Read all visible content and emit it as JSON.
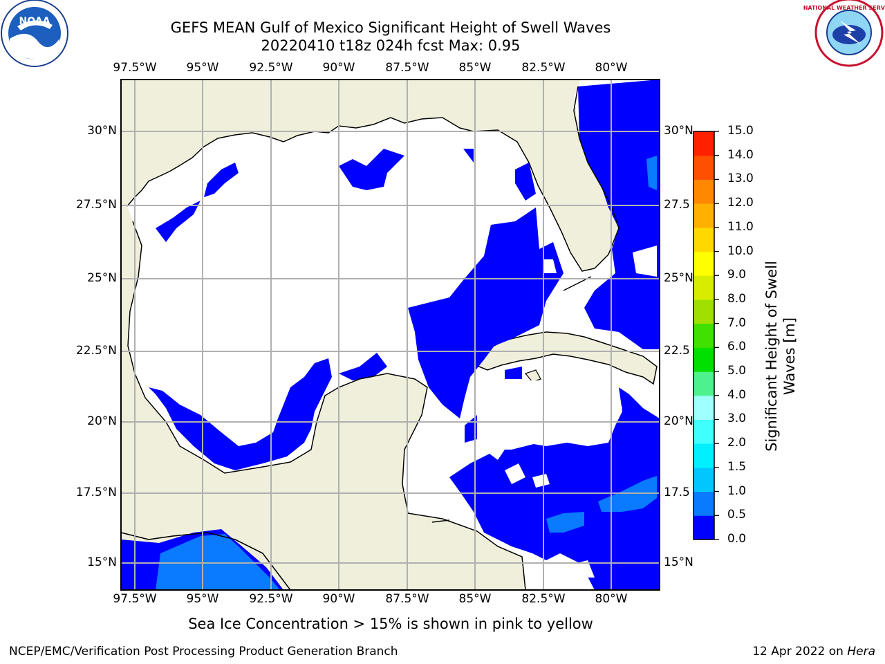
{
  "title_line1": "GEFS MEAN Gulf of Mexico Significant Height of Swell Waves",
  "title_line2": "20220410 t18z 024h fcst   Max: 0.95",
  "lon_ticks": [
    "97.5°W",
    "95°W",
    "92.5°W",
    "90°W",
    "87.5°W",
    "85°W",
    "82.5°W",
    "80°W"
  ],
  "lat_ticks_left": [
    "30°N",
    "27.5°N",
    "25°N",
    "22.5°N",
    "20°N",
    "17.5°N",
    "15°N"
  ],
  "lat_ticks_right": [
    "30°N",
    "27.5",
    "25°N",
    "22.5",
    "20°N",
    "17.5",
    "15°N"
  ],
  "colorbar": {
    "label": "Significant Height of Swell Waves [m]",
    "label_line1": "Significant Height of Swell",
    "label_line2": "Waves [m]",
    "ticks": [
      "0.0",
      "0.5",
      "1.0",
      "1.5",
      "2.0",
      "3.0",
      "4.0",
      "5.0",
      "6.0",
      "7.0",
      "8.0",
      "9.0",
      "10.0",
      "11.0",
      "12.0",
      "13.0",
      "14.0",
      "15.0"
    ],
    "colors": [
      "#0000ff",
      "#0a7aff",
      "#00c8ff",
      "#00f0ff",
      "#40ffff",
      "#a0ffff",
      "#4df28c",
      "#00e000",
      "#40e000",
      "#a0e000",
      "#d8ec00",
      "#ffff00",
      "#ffd800",
      "#ffb000",
      "#ff8800",
      "#ff5000",
      "#ff2000",
      "#ff0000"
    ]
  },
  "note": "Sea Ice Concentration > 15% is shown in pink to yellow",
  "footer_left": "NCEP/EMC/Verification Post Processing Product Generation Branch",
  "footer_date": "12 Apr 2022 on",
  "footer_host": "Hera",
  "logo_left": {
    "icon": "noaa-logo",
    "text": "NOAA"
  },
  "logo_right": {
    "icon": "nws-logo",
    "text": "NATIONAL WEATHER SERVICE"
  },
  "map_colors": {
    "land": "#efefdc",
    "water_low": "#0000ff",
    "water_mid": "#0a7aff",
    "calm": "#ffffff",
    "grid": "#b0b0b0"
  }
}
